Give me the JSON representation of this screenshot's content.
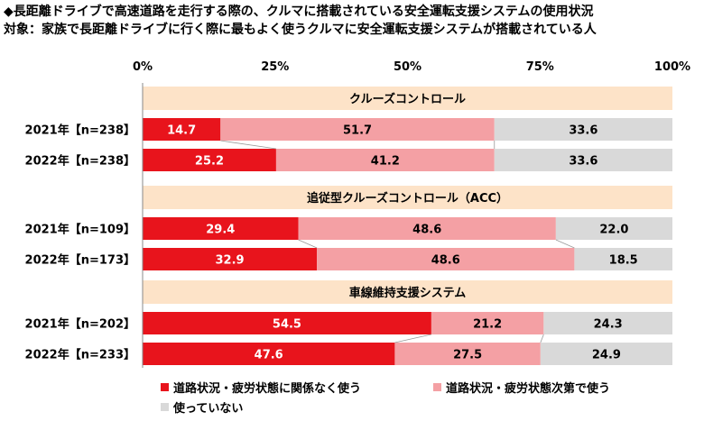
{
  "title_line1": "◆長距離ドライブで高速道路を走行する際の、クルマに搭載されている安全運転支援システムの使用状況",
  "title_line2": "対象：家族で長距離ドライブに行く際に最もよく使うクルマに安全運転支援システムが搭載されている人",
  "chart_data": {
    "type": "bar",
    "orientation": "horizontal",
    "stacked": true,
    "xlim": [
      0,
      100
    ],
    "xticks": [
      "0%",
      "25%",
      "50%",
      "75%",
      "100%"
    ],
    "legend_position": "bottom",
    "series_names": [
      "道路状況・疲労状態に関係なく使う",
      "道路状況・疲労状態次第で使う",
      "使っていない"
    ],
    "colors": [
      "#e8141c",
      "#f4a0a4",
      "#d9d9d9"
    ],
    "groups": [
      {
        "label": "クルーズコントロール",
        "rows": [
          {
            "label": "2021年【n=238】",
            "values": [
              14.7,
              51.7,
              33.6
            ]
          },
          {
            "label": "2022年【n=238】",
            "values": [
              25.2,
              41.2,
              33.6
            ]
          }
        ]
      },
      {
        "label": "追従型クルーズコントロール（ACC）",
        "rows": [
          {
            "label": "2021年【n=109】",
            "values": [
              29.4,
              48.6,
              22.0
            ]
          },
          {
            "label": "2022年【n=173】",
            "values": [
              32.9,
              48.6,
              18.5
            ]
          }
        ]
      },
      {
        "label": "車線維持支援システム",
        "rows": [
          {
            "label": "2021年【n=202】",
            "values": [
              54.5,
              21.2,
              24.3
            ]
          },
          {
            "label": "2022年【n=233】",
            "values": [
              47.6,
              27.5,
              24.9
            ]
          }
        ]
      }
    ]
  }
}
